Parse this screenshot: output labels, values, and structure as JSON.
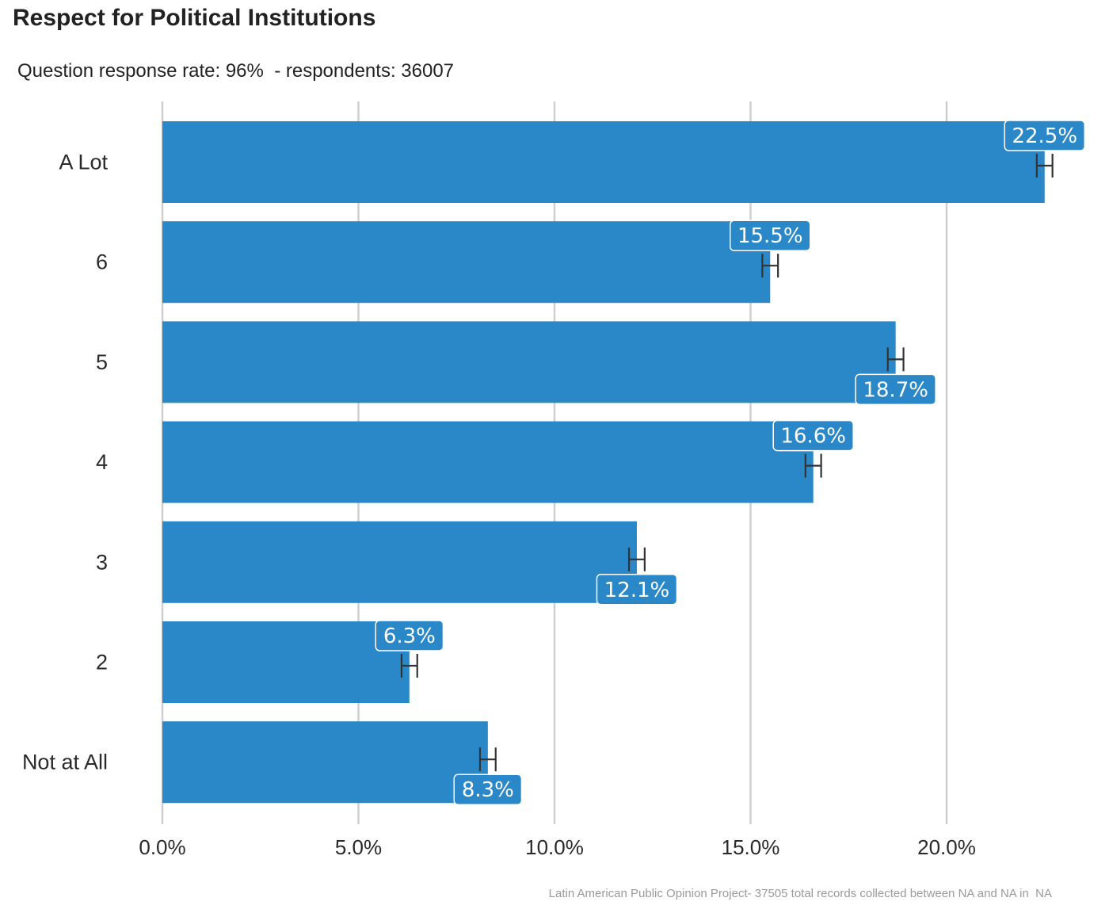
{
  "title": "Respect for Political Institutions",
  "subtitle": "Question response rate: 96%  - respondents: 36007",
  "caption": "Latin American Public Opinion Project- 37505 total records collected between NA and NA in  NA",
  "colors": {
    "bar": "#2b88c8",
    "grid": "#cfcfcf",
    "error_bar": "#333333",
    "label_text": "#ffffff"
  },
  "chart_data": {
    "type": "bar",
    "orientation": "horizontal",
    "categories": [
      "A Lot",
      "6",
      "5",
      "4",
      "3",
      "2",
      "Not at All"
    ],
    "values": [
      22.5,
      15.5,
      18.7,
      16.6,
      12.1,
      6.3,
      8.3
    ],
    "value_labels": [
      "22.5%",
      "15.5%",
      "18.7%",
      "16.6%",
      "12.1%",
      "6.3%",
      "8.3%"
    ],
    "error_bars": [
      {
        "low": 22.3,
        "high": 22.7
      },
      {
        "low": 15.3,
        "high": 15.7
      },
      {
        "low": 18.5,
        "high": 18.9
      },
      {
        "low": 16.4,
        "high": 16.8
      },
      {
        "low": 11.9,
        "high": 12.3
      },
      {
        "low": 6.1,
        "high": 6.5
      },
      {
        "low": 8.1,
        "high": 8.5
      }
    ],
    "label_position": [
      "above",
      "above",
      "below",
      "above",
      "below",
      "above",
      "below"
    ],
    "xlim": [
      0,
      23.5
    ],
    "x_ticks": [
      0,
      5,
      10,
      15,
      20
    ],
    "x_tick_labels": [
      "0.0%",
      "5.0%",
      "10.0%",
      "15.0%",
      "20.0%"
    ],
    "grid": "vertical"
  }
}
